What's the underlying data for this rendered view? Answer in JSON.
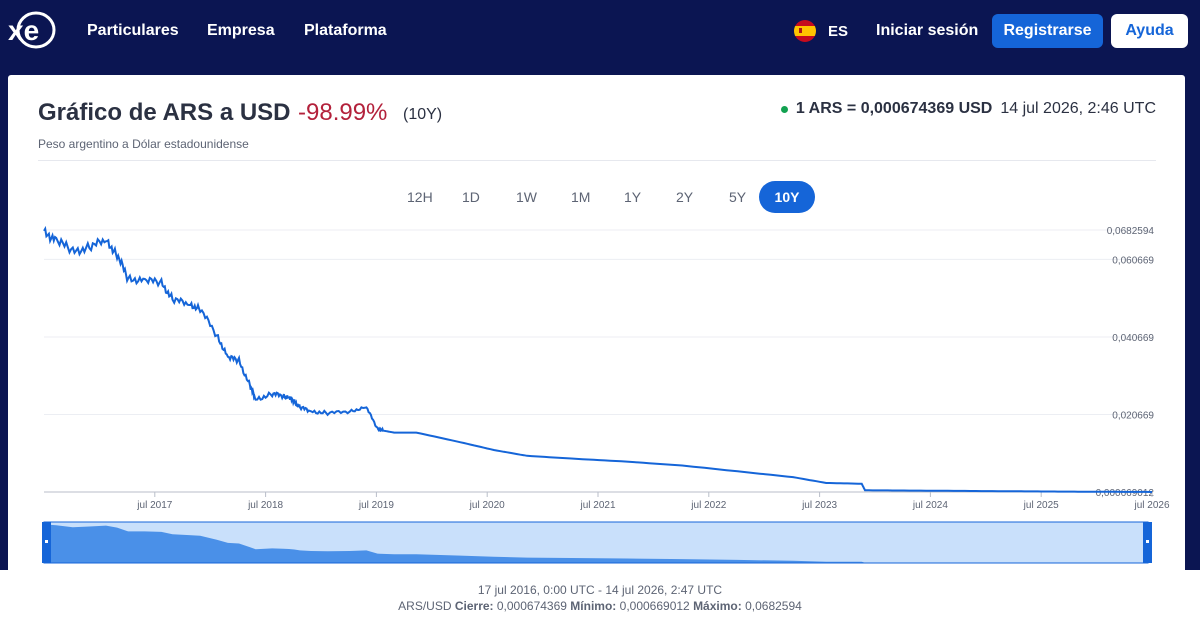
{
  "nav": {
    "items": [
      "Particulares",
      "Empresa",
      "Plataforma"
    ],
    "lang_code": "ES",
    "signin": "Iniciar sesión",
    "register": "Registrarse",
    "help": "Ayuda"
  },
  "header": {
    "title": "Gráfico de ARS a USD",
    "change": "-98.99%",
    "period": "(10Y)",
    "subtitle": "Peso argentino a Dólar estadounidense",
    "rate": "1 ARS = 0,000674369 USD",
    "rate_time": "14 jul 2026, 2:46 UTC"
  },
  "ranges": [
    "12H",
    "1D",
    "1W",
    "1M",
    "1Y",
    "2Y",
    "5Y",
    "10Y"
  ],
  "active_range": "10Y",
  "colors": {
    "accent": "#1565d8",
    "negative": "#b3213b",
    "live": "#12a150",
    "nav_bg": "#0b1552"
  },
  "chart_data": {
    "type": "line",
    "y_ticks": [
      "0,0682594",
      "0,060669",
      "0,040669",
      "0,020669",
      "0,000669012"
    ],
    "y_tick_values": [
      0.0682594,
      0.060669,
      0.040669,
      0.020669,
      0.000669012
    ],
    "x_ticks": [
      "jul 2017",
      "jul 2018",
      "jul 2019",
      "jul 2020",
      "jul 2021",
      "jul 2022",
      "jul 2023",
      "jul 2024",
      "jul 2025",
      "jul 2026"
    ],
    "x_tick_values": [
      2017.54,
      2018.54,
      2019.54,
      2020.54,
      2021.54,
      2022.54,
      2023.54,
      2024.54,
      2025.54,
      2026.54
    ],
    "xlim": [
      2016.54,
      2026.54
    ],
    "ylim": [
      0.000669012,
      0.0682594
    ],
    "series": [
      {
        "x": [
          2016.54,
          2016.65,
          2016.8,
          2016.95,
          2017.1,
          2017.2,
          2017.3,
          2017.45,
          2017.6,
          2017.7,
          2017.85,
          2017.95,
          2018.1,
          2018.2,
          2018.3,
          2018.4,
          2018.45,
          2018.6,
          2018.7,
          2018.75,
          2018.8,
          2018.85,
          2018.95,
          2019.1,
          2019.3,
          2019.45,
          2019.55,
          2019.6,
          2019.7,
          2019.9,
          2020.3,
          2020.6,
          2020.9,
          2021.3,
          2021.8,
          2022.3,
          2022.8,
          2023.3,
          2023.6,
          2023.92,
          2023.95,
          2024.3,
          2024.8,
          2025.3,
          2025.6,
          2025.9,
          2026.54
        ],
        "y": [
          0.0675,
          0.066,
          0.0625,
          0.064,
          0.0655,
          0.062,
          0.0555,
          0.0555,
          0.0545,
          0.0505,
          0.049,
          0.048,
          0.041,
          0.0355,
          0.0345,
          0.028,
          0.0245,
          0.026,
          0.0255,
          0.025,
          0.024,
          0.0225,
          0.0215,
          0.021,
          0.0215,
          0.0225,
          0.017,
          0.0165,
          0.016,
          0.016,
          0.0135,
          0.0115,
          0.01,
          0.0093,
          0.0085,
          0.0075,
          0.006,
          0.0045,
          0.003,
          0.0028,
          0.0011,
          0.00105,
          0.00095,
          0.00085,
          0.0008,
          0.00075,
          0.000674369
        ]
      }
    ]
  },
  "footer": {
    "range": "17 jul 2016, 0:00 UTC - 14 jul 2026, 2:47 UTC",
    "pair": "ARS/USD",
    "close_label": "Cierre:",
    "close": "0,000674369",
    "min_label": "Mínimo:",
    "min": "0,000669012",
    "max_label": "Máximo:",
    "max": "0,0682594"
  }
}
